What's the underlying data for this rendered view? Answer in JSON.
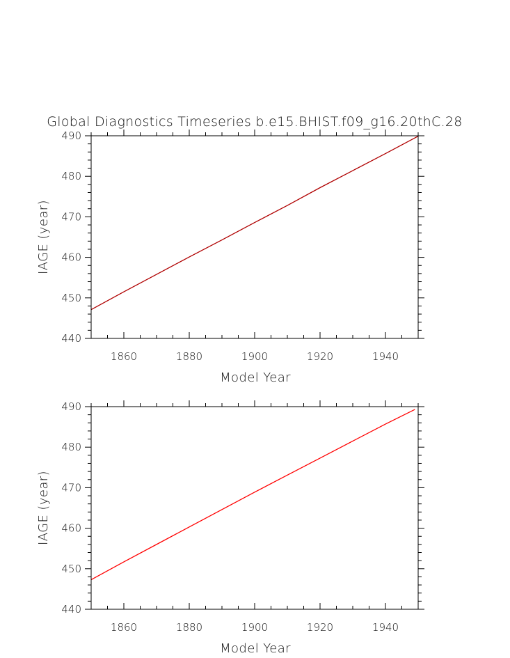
{
  "title": "Global Diagnostics Timeseries b.e15.BHIST.f09_g16.20thC.28",
  "colors": {
    "background": "#ffffff",
    "axes": "#000000",
    "top_series": "#b00000",
    "bottom_series": "#ff0000"
  },
  "chart_data": [
    {
      "type": "line",
      "title": "Global Diagnostics Timeseries b.e15.BHIST.f09_g16.20thC.28",
      "xlabel": "Model Year",
      "ylabel": "IAGE (year)",
      "xlim": [
        1850,
        1950
      ],
      "ylim": [
        440,
        490
      ],
      "xticks": [
        1860,
        1880,
        1900,
        1920,
        1940
      ],
      "yticks": [
        440,
        450,
        460,
        470,
        480,
        490
      ],
      "x_minor_step": 5,
      "y_minor_step": 2,
      "grid": false,
      "series": [
        {
          "color": "#b00000",
          "x": [
            1850,
            1860,
            1870,
            1880,
            1890,
            1900,
            1910,
            1920,
            1930,
            1940,
            1950
          ],
          "values": [
            447.1,
            451.5,
            455.8,
            460.1,
            464.3,
            468.6,
            472.8,
            477.2,
            481.4,
            485.6,
            489.9
          ]
        }
      ]
    },
    {
      "type": "line",
      "title": "",
      "xlabel": "Model Year",
      "ylabel": "IAGE (year)",
      "xlim": [
        1850,
        1950
      ],
      "ylim": [
        440,
        490
      ],
      "xticks": [
        1860,
        1880,
        1900,
        1920,
        1940
      ],
      "yticks": [
        440,
        450,
        460,
        470,
        480,
        490
      ],
      "x_minor_step": 5,
      "y_minor_step": 2,
      "grid": false,
      "series": [
        {
          "color": "#ff0000",
          "x": [
            1850,
            1860,
            1870,
            1880,
            1890,
            1900,
            1910,
            1920,
            1930,
            1940,
            1949
          ],
          "values": [
            447.3,
            451.7,
            456.0,
            460.3,
            464.6,
            468.9,
            473.1,
            477.3,
            481.5,
            485.7,
            489.3
          ]
        }
      ]
    }
  ]
}
